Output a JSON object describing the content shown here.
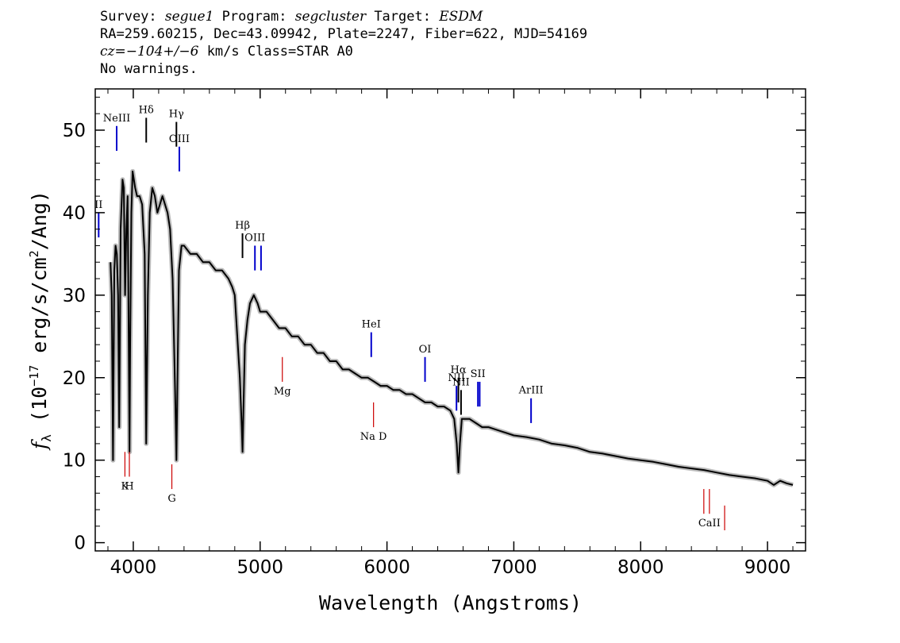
{
  "header": {
    "l1_survey_label": "Survey: ",
    "l1_survey": "segue1",
    "l1_program_label": " Program: ",
    "l1_program": "segcluster",
    "l1_target_label": " Target: ",
    "l1_target": "ESDM",
    "line2": "RA=259.60215, Dec=43.09942, Plate=2247, Fiber=622, MJD=54169",
    "l3_cz": "cz=−104+/−6",
    "l3_rest": " km/s Class=STAR A0",
    "line4": "No warnings."
  },
  "chart_data": {
    "type": "line",
    "xlabel": "Wavelength (Angstroms)",
    "ylabel_main": "f",
    "ylabel_sub": "λ",
    "ylabel_rest": " (10",
    "ylabel_exp": "−17",
    "ylabel_tail": " erg/s/cm",
    "ylabel_exp2": "2",
    "ylabel_end": "/Ang)",
    "xlim": [
      3700,
      9300
    ],
    "ylim": [
      -1,
      55
    ],
    "xticks": [
      4000,
      5000,
      6000,
      7000,
      8000,
      9000
    ],
    "yticks": [
      0,
      10,
      20,
      30,
      40,
      50
    ],
    "colors": {
      "spectrum": "#000000",
      "error": "#bbbbbb",
      "emission": "#0000cc",
      "absorption": "#cc0000"
    },
    "series": [
      {
        "x": [
          3820,
          3830,
          3840,
          3850,
          3860,
          3870,
          3880,
          3889,
          3900,
          3915,
          3925,
          3935,
          3945,
          3955,
          3965,
          3970,
          3975,
          3985,
          3995,
          4005,
          4015,
          4030,
          4050,
          4070,
          4090,
          4102,
          4115,
          4130,
          4150,
          4170,
          4190,
          4210,
          4230,
          4250,
          4270,
          4290,
          4310,
          4330,
          4340,
          4350,
          4360,
          4380,
          4400,
          4450,
          4500,
          4550,
          4600,
          4650,
          4700,
          4750,
          4780,
          4800,
          4820,
          4840,
          4855,
          4861,
          4868,
          4880,
          4900,
          4920,
          4950,
          4980,
          5000,
          5050,
          5100,
          5150,
          5200,
          5250,
          5300,
          5350,
          5400,
          5450,
          5500,
          5550,
          5600,
          5650,
          5700,
          5750,
          5800,
          5850,
          5900,
          5950,
          6000,
          6050,
          6100,
          6150,
          6200,
          6250,
          6300,
          6350,
          6400,
          6450,
          6500,
          6530,
          6550,
          6563,
          6575,
          6590,
          6620,
          6650,
          6700,
          6750,
          6800,
          6900,
          7000,
          7100,
          7200,
          7300,
          7400,
          7500,
          7600,
          7700,
          7800,
          7900,
          8000,
          8100,
          8200,
          8300,
          8400,
          8500,
          8600,
          8700,
          8800,
          8900,
          9000,
          9050,
          9100,
          9150,
          9200
        ],
        "y": [
          34,
          30,
          10,
          33,
          36,
          35,
          30,
          14,
          38,
          44,
          43,
          30,
          38,
          42,
          22,
          11,
          24,
          40,
          45,
          44,
          43,
          42,
          42,
          41,
          35,
          12,
          30,
          40,
          43,
          42,
          40,
          41,
          42,
          41,
          40,
          38,
          32,
          18,
          10,
          22,
          33,
          36,
          36,
          35,
          35,
          34,
          34,
          33,
          33,
          32,
          31,
          30,
          25,
          20,
          14,
          11,
          16,
          24,
          27,
          29,
          30,
          29,
          28,
          28,
          27,
          26,
          26,
          25,
          25,
          24,
          24,
          23,
          23,
          22,
          22,
          21,
          21,
          20.5,
          20,
          20,
          19.5,
          19,
          19,
          18.5,
          18.5,
          18,
          18,
          17.5,
          17,
          17,
          16.5,
          16.5,
          16,
          15,
          12,
          8.5,
          12,
          15,
          15,
          15,
          14.5,
          14,
          14,
          13.5,
          13,
          12.8,
          12.5,
          12,
          11.8,
          11.5,
          11,
          10.8,
          10.5,
          10.2,
          10,
          9.8,
          9.5,
          9.2,
          9,
          8.8,
          8.5,
          8.2,
          8,
          7.8,
          7.5,
          7,
          7.5,
          7.2,
          7
        ]
      }
    ],
    "emission_lines": [
      {
        "label": "NeIII",
        "x": 3869,
        "y1": 47.5,
        "y2": 50.5
      },
      {
        "label": "II",
        "x": 3727,
        "y1": 37,
        "y2": 40
      },
      {
        "label": "OIII",
        "x": 4363,
        "y1": 45,
        "y2": 48
      },
      {
        "label": "OIII",
        "x": 4959,
        "y1": 33,
        "y2": 36
      },
      {
        "label": "",
        "x": 5007,
        "y1": 33,
        "y2": 36
      },
      {
        "label": "HeI",
        "x": 5876,
        "y1": 22.5,
        "y2": 25.5
      },
      {
        "label": "OI",
        "x": 6300,
        "y1": 19.5,
        "y2": 22.5
      },
      {
        "label": "NII",
        "x": 6548,
        "y1": 16,
        "y2": 19
      },
      {
        "label": "SII",
        "x": 6717,
        "y1": 16.5,
        "y2": 19.5
      },
      {
        "label": "",
        "x": 6731,
        "y1": 16.5,
        "y2": 19.5
      },
      {
        "label": "ArIII",
        "x": 7136,
        "y1": 14.5,
        "y2": 17.5
      }
    ],
    "balmer_lines": [
      {
        "label": "Hδ",
        "x": 4102,
        "y1": 48.5,
        "y2": 51.5
      },
      {
        "label": "Hγ",
        "x": 4340,
        "y1": 48,
        "y2": 51
      },
      {
        "label": "Hβ",
        "x": 4861,
        "y1": 34.5,
        "y2": 37.5
      },
      {
        "label": "Hα",
        "x": 6563,
        "y1": 17,
        "y2": 20
      },
      {
        "label": "NII",
        "x": 6584,
        "y1": 15.5,
        "y2": 18.5
      }
    ],
    "absorption_lines": [
      {
        "label": "K",
        "x": 3934,
        "y1": 8,
        "y2": 11
      },
      {
        "label": "H",
        "x": 3969,
        "y1": 8,
        "y2": 11
      },
      {
        "label": "G",
        "x": 4304,
        "y1": 6.5,
        "y2": 9.5
      },
      {
        "label": "Mg",
        "x": 5175,
        "y1": 19.5,
        "y2": 22.5
      },
      {
        "label": "Na D",
        "x": 5894,
        "y1": 14,
        "y2": 17
      },
      {
        "label": "",
        "x": 8498,
        "y1": 3.5,
        "y2": 6.5
      },
      {
        "label": "CaII",
        "x": 8542,
        "y1": 3.5,
        "y2": 6.5
      },
      {
        "label": "",
        "x": 8662,
        "y1": 1.5,
        "y2": 4.5
      }
    ]
  }
}
